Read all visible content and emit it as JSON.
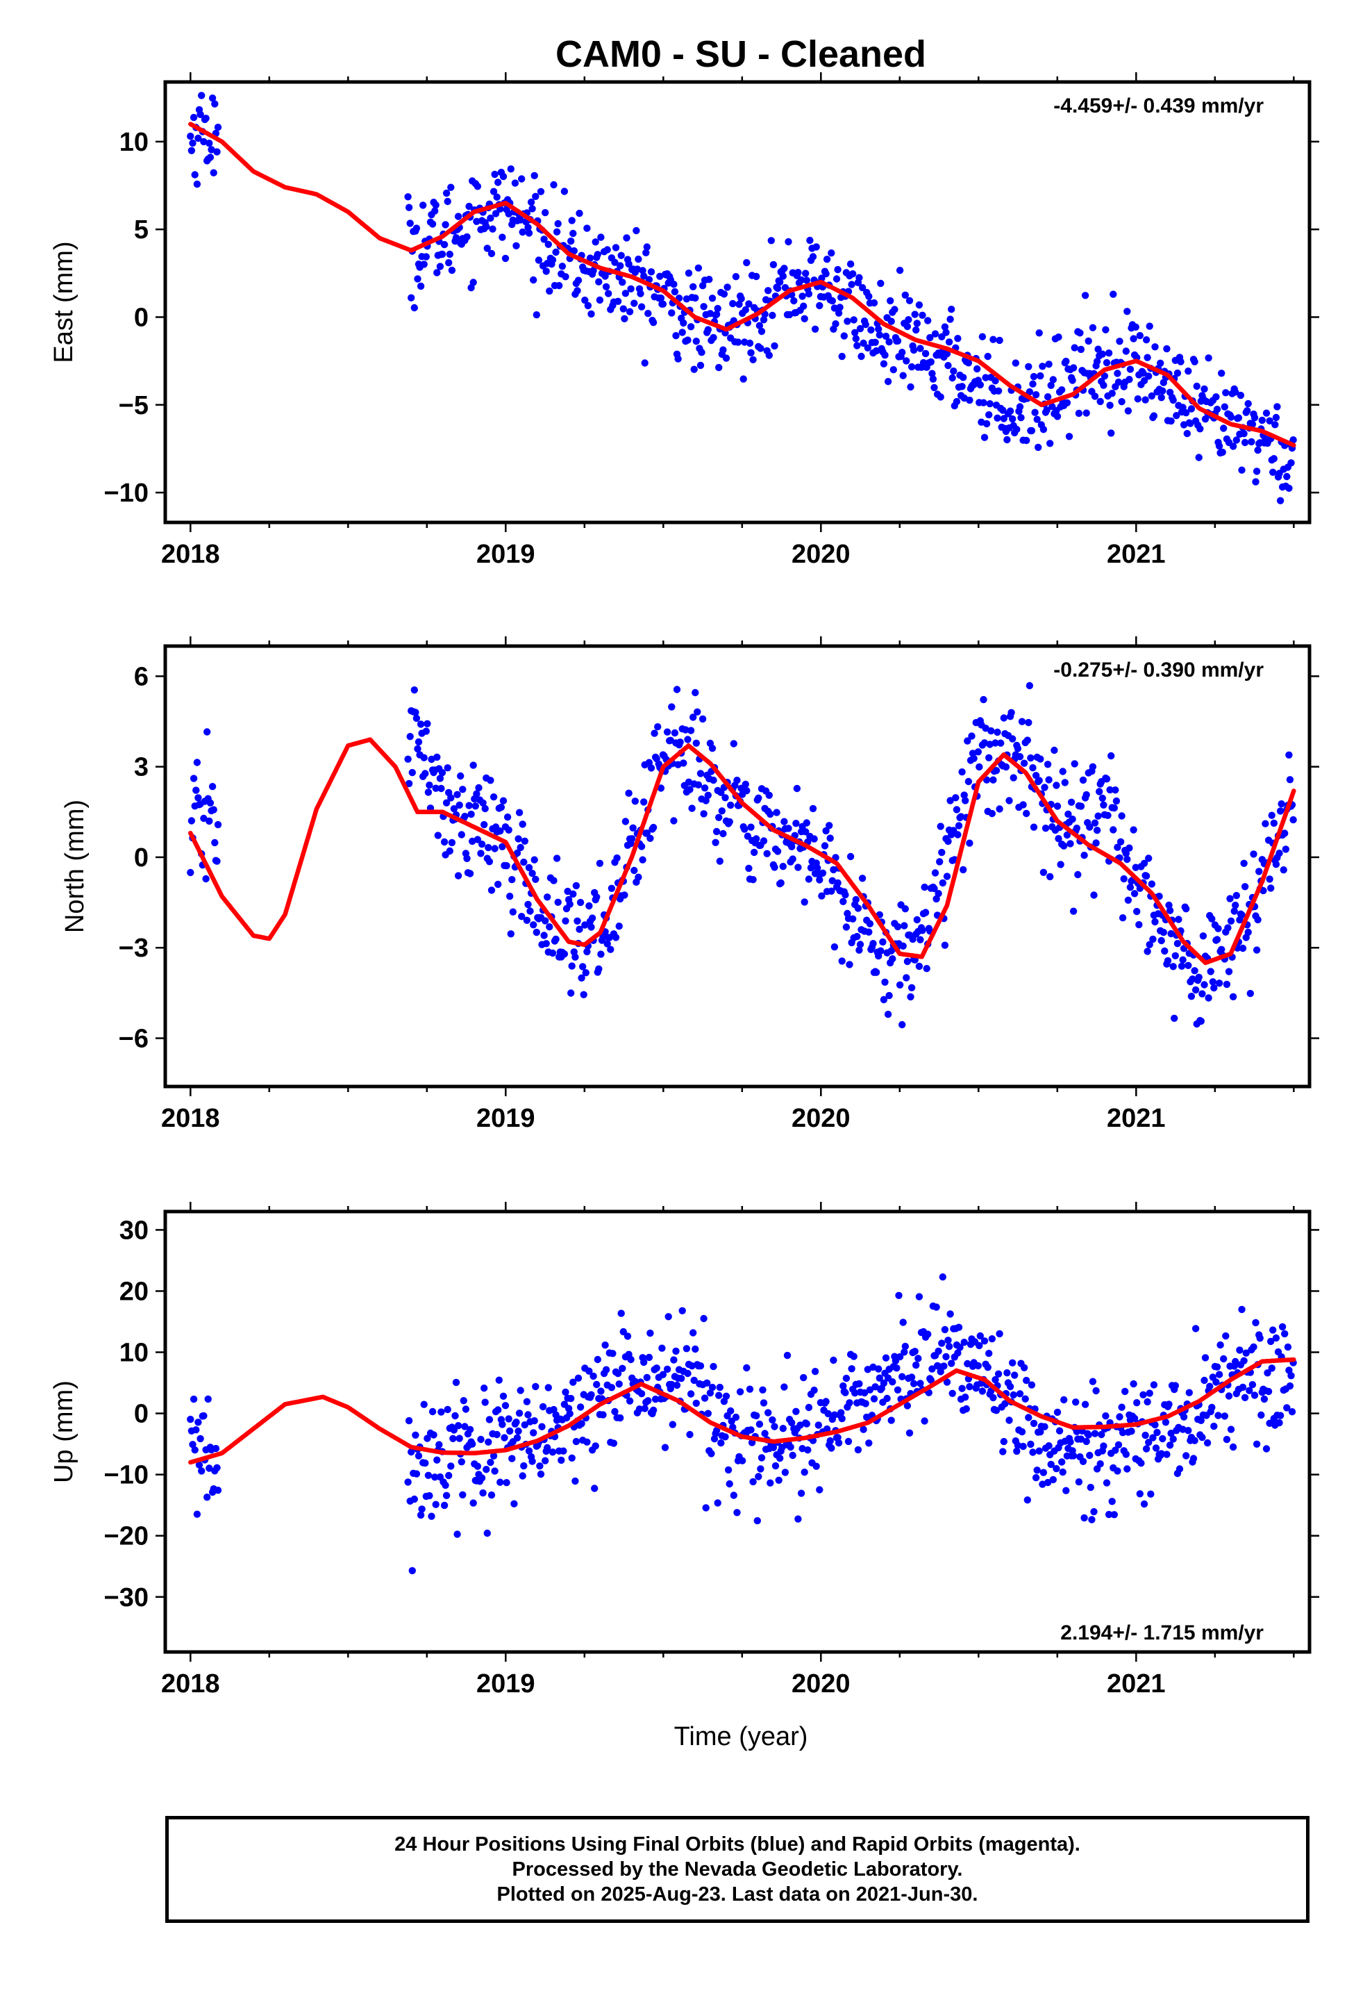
{
  "chart_data": [
    {
      "type": "scatter",
      "title": "CAM0  - SU - Cleaned",
      "ylabel": "East (mm)",
      "xlabel": "",
      "xlim": [
        2017.92,
        2021.55
      ],
      "ylim": [
        -11.7,
        13.4
      ],
      "xticks": [
        "2018",
        "2019",
        "2020",
        "2021"
      ],
      "yticks": [
        "10",
        "5",
        "0",
        "−5",
        "−10"
      ],
      "rate": "-4.459+/- 0.439 mm/yr",
      "rate_position": "top-right",
      "grid": false,
      "series": [
        {
          "name": "",
          "style": "points",
          "color": "#0000ff",
          "x": [
            2018.0,
            2018.03,
            2018.06,
            2018.08,
            2018.7,
            2018.8,
            2018.9,
            2019.0,
            2019.1,
            2019.2,
            2019.3,
            2019.4,
            2019.5,
            2019.6,
            2019.7,
            2019.8,
            2019.9,
            2020.0,
            2020.1,
            2020.2,
            2020.3,
            2020.4,
            2020.5,
            2020.6,
            2020.7,
            2020.8,
            2020.9,
            2021.0,
            2021.1,
            2021.2,
            2021.3,
            2021.4,
            2021.5
          ],
          "y": [
            10.0,
            10.8,
            10.5,
            10.2,
            4.0,
            4.5,
            5.8,
            6.3,
            5.0,
            3.3,
            2.6,
            2.0,
            1.2,
            -0.3,
            -0.6,
            0.6,
            1.8,
            1.9,
            0.5,
            -1.2,
            -1.8,
            -2.4,
            -3.6,
            -5.0,
            -4.7,
            -3.2,
            -2.6,
            -2.5,
            -4.0,
            -5.8,
            -6.2,
            -6.8,
            -8.4
          ]
        },
        {
          "name": "",
          "style": "line",
          "color": "#ff0000",
          "x": [
            2018.0,
            2018.1,
            2018.2,
            2018.3,
            2018.4,
            2018.5,
            2018.6,
            2018.7,
            2018.8,
            2018.9,
            2019.0,
            2019.1,
            2019.2,
            2019.3,
            2019.4,
            2019.5,
            2019.6,
            2019.7,
            2019.8,
            2019.9,
            2020.0,
            2020.1,
            2020.2,
            2020.3,
            2020.4,
            2020.5,
            2020.6,
            2020.7,
            2020.8,
            2020.9,
            2021.0,
            2021.1,
            2021.2,
            2021.3,
            2021.4,
            2021.5
          ],
          "y": [
            11.0,
            10.0,
            8.3,
            7.4,
            7.0,
            6.0,
            4.5,
            3.8,
            4.6,
            6.0,
            6.5,
            5.3,
            3.6,
            2.8,
            2.3,
            1.5,
            0.0,
            -0.7,
            0.2,
            1.5,
            2.0,
            1.1,
            -0.4,
            -1.3,
            -1.8,
            -2.5,
            -3.9,
            -5.0,
            -4.4,
            -3.0,
            -2.5,
            -3.3,
            -5.2,
            -6.1,
            -6.5,
            -7.3
          ]
        }
      ]
    },
    {
      "type": "scatter",
      "title": "",
      "ylabel": "North (mm)",
      "xlabel": "",
      "xlim": [
        2017.92,
        2021.55
      ],
      "ylim": [
        -7.6,
        7.0
      ],
      "xticks": [
        "2018",
        "2019",
        "2020",
        "2021"
      ],
      "yticks": [
        "6",
        "3",
        "0",
        "−3",
        "−6"
      ],
      "rate": "-0.275+/- 0.390 mm/yr",
      "rate_position": "top-right",
      "grid": false,
      "series": [
        {
          "name": "",
          "style": "points",
          "color": "#0000ff",
          "x": [
            2018.0,
            2018.03,
            2018.06,
            2018.08,
            2018.72,
            2018.8,
            2018.9,
            2019.0,
            2019.1,
            2019.2,
            2019.3,
            2019.4,
            2019.5,
            2019.6,
            2019.7,
            2019.8,
            2019.9,
            2020.0,
            2020.1,
            2020.2,
            2020.3,
            2020.4,
            2020.5,
            2020.6,
            2020.7,
            2020.8,
            2020.9,
            2021.0,
            2021.1,
            2021.2,
            2021.3,
            2021.4,
            2021.5
          ],
          "y": [
            0.6,
            1.2,
            1.5,
            1.1,
            4.0,
            1.5,
            1.2,
            0.4,
            -1.5,
            -2.7,
            -2.4,
            0.2,
            3.5,
            3.2,
            1.8,
            0.8,
            0.6,
            -0.3,
            -1.8,
            -3.2,
            -3.0,
            0.0,
            3.5,
            3.5,
            2.0,
            0.7,
            1.5,
            -0.6,
            -2.5,
            -3.8,
            -3.0,
            -1.0,
            2.0
          ]
        },
        {
          "name": "",
          "style": "line",
          "color": "#ff0000",
          "x": [
            2018.0,
            2018.1,
            2018.2,
            2018.25,
            2018.3,
            2018.4,
            2018.5,
            2018.57,
            2018.65,
            2018.72,
            2018.8,
            2018.9,
            2019.0,
            2019.1,
            2019.2,
            2019.25,
            2019.3,
            2019.4,
            2019.5,
            2019.58,
            2019.65,
            2019.75,
            2019.85,
            2019.95,
            2020.05,
            2020.15,
            2020.25,
            2020.32,
            2020.4,
            2020.5,
            2020.58,
            2020.65,
            2020.75,
            2020.85,
            2020.95,
            2021.05,
            2021.15,
            2021.22,
            2021.3,
            2021.4,
            2021.5
          ],
          "y": [
            0.8,
            -1.3,
            -2.6,
            -2.7,
            -1.9,
            1.6,
            3.7,
            3.9,
            3.0,
            1.5,
            1.5,
            1.0,
            0.5,
            -1.4,
            -2.8,
            -2.9,
            -2.5,
            0.0,
            3.0,
            3.7,
            3.1,
            1.8,
            0.9,
            0.4,
            -0.2,
            -1.6,
            -3.2,
            -3.3,
            -1.6,
            2.5,
            3.4,
            2.8,
            1.2,
            0.4,
            -0.2,
            -1.2,
            -2.8,
            -3.5,
            -3.2,
            -0.8,
            2.2
          ]
        }
      ]
    },
    {
      "type": "scatter",
      "title": "",
      "ylabel": "Up (mm)",
      "xlabel": "Time (year)",
      "xlim": [
        2017.92,
        2021.55
      ],
      "ylim": [
        -39,
        33
      ],
      "xticks": [
        "2018",
        "2019",
        "2020",
        "2021"
      ],
      "yticks": [
        "30",
        "20",
        "10",
        "0",
        "−10",
        "−20",
        "−30"
      ],
      "rate": "2.194+/- 1.715 mm/yr",
      "rate_position": "bottom-right",
      "grid": false,
      "series": [
        {
          "name": "",
          "style": "points",
          "color": "#0000ff",
          "x": [
            2018.0,
            2018.03,
            2018.06,
            2018.08,
            2018.7,
            2018.8,
            2018.9,
            2019.0,
            2019.1,
            2019.2,
            2019.3,
            2019.4,
            2019.5,
            2019.6,
            2019.7,
            2019.8,
            2019.9,
            2020.0,
            2020.1,
            2020.2,
            2020.3,
            2020.4,
            2020.5,
            2020.6,
            2020.7,
            2020.8,
            2020.9,
            2021.0,
            2021.1,
            2021.2,
            2021.3,
            2021.4,
            2021.5
          ],
          "y": [
            -5.0,
            -7.0,
            -9.0,
            -8.0,
            -8.0,
            -7.0,
            -6.0,
            -6.0,
            -5.0,
            -2.0,
            2.0,
            5.0,
            6.0,
            5.0,
            -5.0,
            -6.0,
            -5.0,
            -3.0,
            1.0,
            6.0,
            8.0,
            9.0,
            8.0,
            2.0,
            -5.0,
            -7.0,
            -6.0,
            -3.0,
            -3.0,
            1.0,
            6.0,
            8.0,
            7.0
          ]
        },
        {
          "name": "",
          "style": "line",
          "color": "#ff0000",
          "x": [
            2018.0,
            2018.1,
            2018.2,
            2018.3,
            2018.42,
            2018.5,
            2018.6,
            2018.7,
            2018.8,
            2018.9,
            2019.0,
            2019.1,
            2019.2,
            2019.3,
            2019.43,
            2019.55,
            2019.65,
            2019.75,
            2019.85,
            2019.95,
            2020.05,
            2020.15,
            2020.25,
            2020.35,
            2020.43,
            2020.52,
            2020.6,
            2020.7,
            2020.8,
            2020.9,
            2021.0,
            2021.1,
            2021.2,
            2021.3,
            2021.4,
            2021.5
          ],
          "y": [
            -8.0,
            -6.5,
            -2.5,
            1.5,
            2.7,
            1.0,
            -2.5,
            -5.5,
            -6.4,
            -6.5,
            -6.0,
            -4.5,
            -2.0,
            1.5,
            4.8,
            2.0,
            -1.5,
            -3.8,
            -4.6,
            -4.0,
            -3.0,
            -1.5,
            1.5,
            4.5,
            7.0,
            5.5,
            2.0,
            -0.5,
            -2.3,
            -2.2,
            -1.8,
            -0.5,
            2.0,
            5.5,
            8.5,
            8.8
          ]
        }
      ]
    }
  ],
  "caption": {
    "line1": "24 Hour Positions Using Final Orbits (blue) and Rapid Orbits (magenta).",
    "line2": "Processed by the Nevada Geodetic Laboratory.",
    "line3": "Plotted on 2025-Aug-23. Last data on 2021-Jun-30."
  }
}
